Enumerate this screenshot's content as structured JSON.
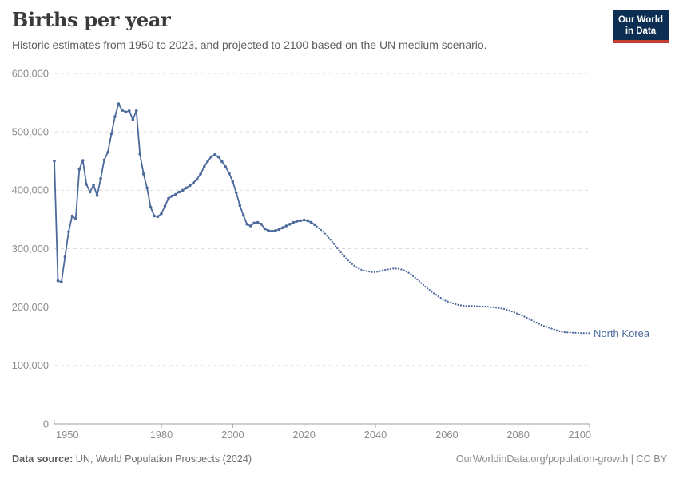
{
  "header": {
    "title": "Births per year",
    "subtitle": "Historic estimates from 1950 to 2023, and projected to 2100 based on the UN medium scenario."
  },
  "logo": {
    "line1": "Our World",
    "line2": "in Data",
    "bg": "#0d2e53",
    "accent": "#c53e33"
  },
  "footer": {
    "source_label": "Data source:",
    "source_value": "UN, World Population Prospects (2024)",
    "citation": "OurWorldinData.org/population-growth | CC BY"
  },
  "chart_data": {
    "type": "line",
    "title": "Births per year",
    "entity": "North Korea",
    "xlabel": "",
    "ylabel": "",
    "xlim": [
      1950,
      2100
    ],
    "ylim": [
      0,
      600000
    ],
    "xticks": [
      1950,
      1980,
      2000,
      2020,
      2040,
      2060,
      2080,
      2100
    ],
    "yticks": [
      0,
      100000,
      200000,
      300000,
      400000,
      500000,
      600000
    ],
    "grid": "horizontal-dashed",
    "legend_position": "end-of-line-label",
    "colors": {
      "line": "#4c6a9c",
      "grid": "#dcdcdc",
      "axis": "#a1a1a1",
      "tick_label": "#8c8c8c"
    },
    "series": [
      {
        "name": "historic",
        "style": "solid-with-markers",
        "years": [
          1950,
          1951,
          1952,
          1953,
          1954,
          1955,
          1956,
          1957,
          1958,
          1959,
          1960,
          1961,
          1962,
          1963,
          1964,
          1965,
          1966,
          1967,
          1968,
          1969,
          1970,
          1971,
          1972,
          1973,
          1974,
          1975,
          1976,
          1977,
          1978,
          1979,
          1980,
          1981,
          1982,
          1983,
          1984,
          1985,
          1986,
          1987,
          1988,
          1989,
          1990,
          1991,
          1992,
          1993,
          1994,
          1995,
          1996,
          1997,
          1998,
          1999,
          2000,
          2001,
          2002,
          2003,
          2004,
          2005,
          2006,
          2007,
          2008,
          2009,
          2010,
          2011,
          2012,
          2013,
          2014,
          2015,
          2016,
          2017,
          2018,
          2019,
          2020,
          2021,
          2022,
          2023
        ],
        "values": [
          450000,
          245000,
          243000,
          286000,
          329000,
          356000,
          351000,
          436000,
          451000,
          410000,
          397000,
          409000,
          391000,
          420000,
          452000,
          465000,
          497000,
          526000,
          548000,
          537000,
          534000,
          536000,
          521000,
          536000,
          462000,
          428000,
          404000,
          371000,
          356000,
          355000,
          360000,
          373000,
          386000,
          390000,
          393000,
          397000,
          400000,
          404000,
          408000,
          413000,
          419000,
          428000,
          440000,
          450000,
          457000,
          461000,
          457000,
          449000,
          440000,
          429000,
          415000,
          396000,
          374000,
          357000,
          342000,
          339000,
          344000,
          345000,
          342000,
          334000,
          331000,
          330000,
          331000,
          333000,
          336000,
          339000,
          342000,
          345000,
          347000,
          348000,
          349000,
          348000,
          345000,
          341000
        ]
      },
      {
        "name": "projection (UN medium scenario)",
        "style": "dotted",
        "years": [
          2023,
          2024,
          2025,
          2026,
          2027,
          2028,
          2029,
          2030,
          2031,
          2032,
          2033,
          2034,
          2035,
          2036,
          2037,
          2038,
          2039,
          2040,
          2041,
          2042,
          2043,
          2044,
          2045,
          2046,
          2047,
          2048,
          2049,
          2050,
          2051,
          2052,
          2053,
          2054,
          2055,
          2056,
          2057,
          2058,
          2059,
          2060,
          2061,
          2062,
          2063,
          2064,
          2065,
          2066,
          2067,
          2068,
          2069,
          2070,
          2071,
          2072,
          2073,
          2074,
          2075,
          2076,
          2077,
          2078,
          2079,
          2080,
          2081,
          2082,
          2083,
          2084,
          2085,
          2086,
          2087,
          2088,
          2089,
          2090,
          2091,
          2092,
          2093,
          2094,
          2095,
          2096,
          2097,
          2098,
          2099,
          2100
        ],
        "values": [
          341000,
          336000,
          331000,
          325000,
          318000,
          311000,
          303000,
          296000,
          289000,
          282000,
          276000,
          271000,
          267000,
          264000,
          262000,
          261000,
          260000,
          260000,
          261000,
          263000,
          264000,
          265000,
          266000,
          266000,
          265000,
          263000,
          260000,
          256000,
          251000,
          246000,
          240000,
          235000,
          230000,
          225000,
          221000,
          217000,
          213000,
          210000,
          208000,
          206000,
          204000,
          203000,
          202000,
          202000,
          202000,
          202000,
          201000,
          201000,
          201000,
          200000,
          200000,
          199000,
          198000,
          197000,
          195000,
          193000,
          191000,
          188000,
          186000,
          183000,
          180000,
          177000,
          174000,
          171000,
          168000,
          166000,
          164000,
          162000,
          160000,
          158000,
          157000,
          156600,
          156300,
          156000,
          155800,
          155600,
          155500,
          155400
        ]
      }
    ]
  }
}
